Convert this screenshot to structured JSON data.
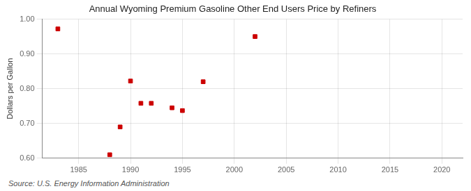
{
  "chart_data": {
    "type": "scatter",
    "title": "Annual Wyoming Premium Gasoline Other End Users Price by Refiners",
    "y_label": "Dollars per Gallon",
    "annotation": "Source: U.S. Energy Information Administration",
    "x": [
      1983,
      1988,
      1989,
      1990,
      1991,
      1992,
      1994,
      1995,
      1997,
      2002
    ],
    "values": [
      0.972,
      0.61,
      0.69,
      0.822,
      0.758,
      0.758,
      0.745,
      0.737,
      0.82,
      0.95
    ],
    "color": "#cc0000",
    "marker": "square",
    "xlim": [
      1981.5,
      2022
    ],
    "ylim": [
      0.6,
      1.0
    ],
    "xticks": [
      1985,
      1990,
      1995,
      2000,
      2005,
      2010,
      2015,
      2020
    ],
    "yticks": [
      {
        "value": 0.6,
        "label": "0.60"
      },
      {
        "value": 0.7,
        "label": "0.70"
      },
      {
        "value": 0.8,
        "label": "0.80"
      },
      {
        "value": 0.9,
        "label": "0.90"
      },
      {
        "value": 1.0,
        "label": "1.00"
      }
    ],
    "grid": true
  }
}
